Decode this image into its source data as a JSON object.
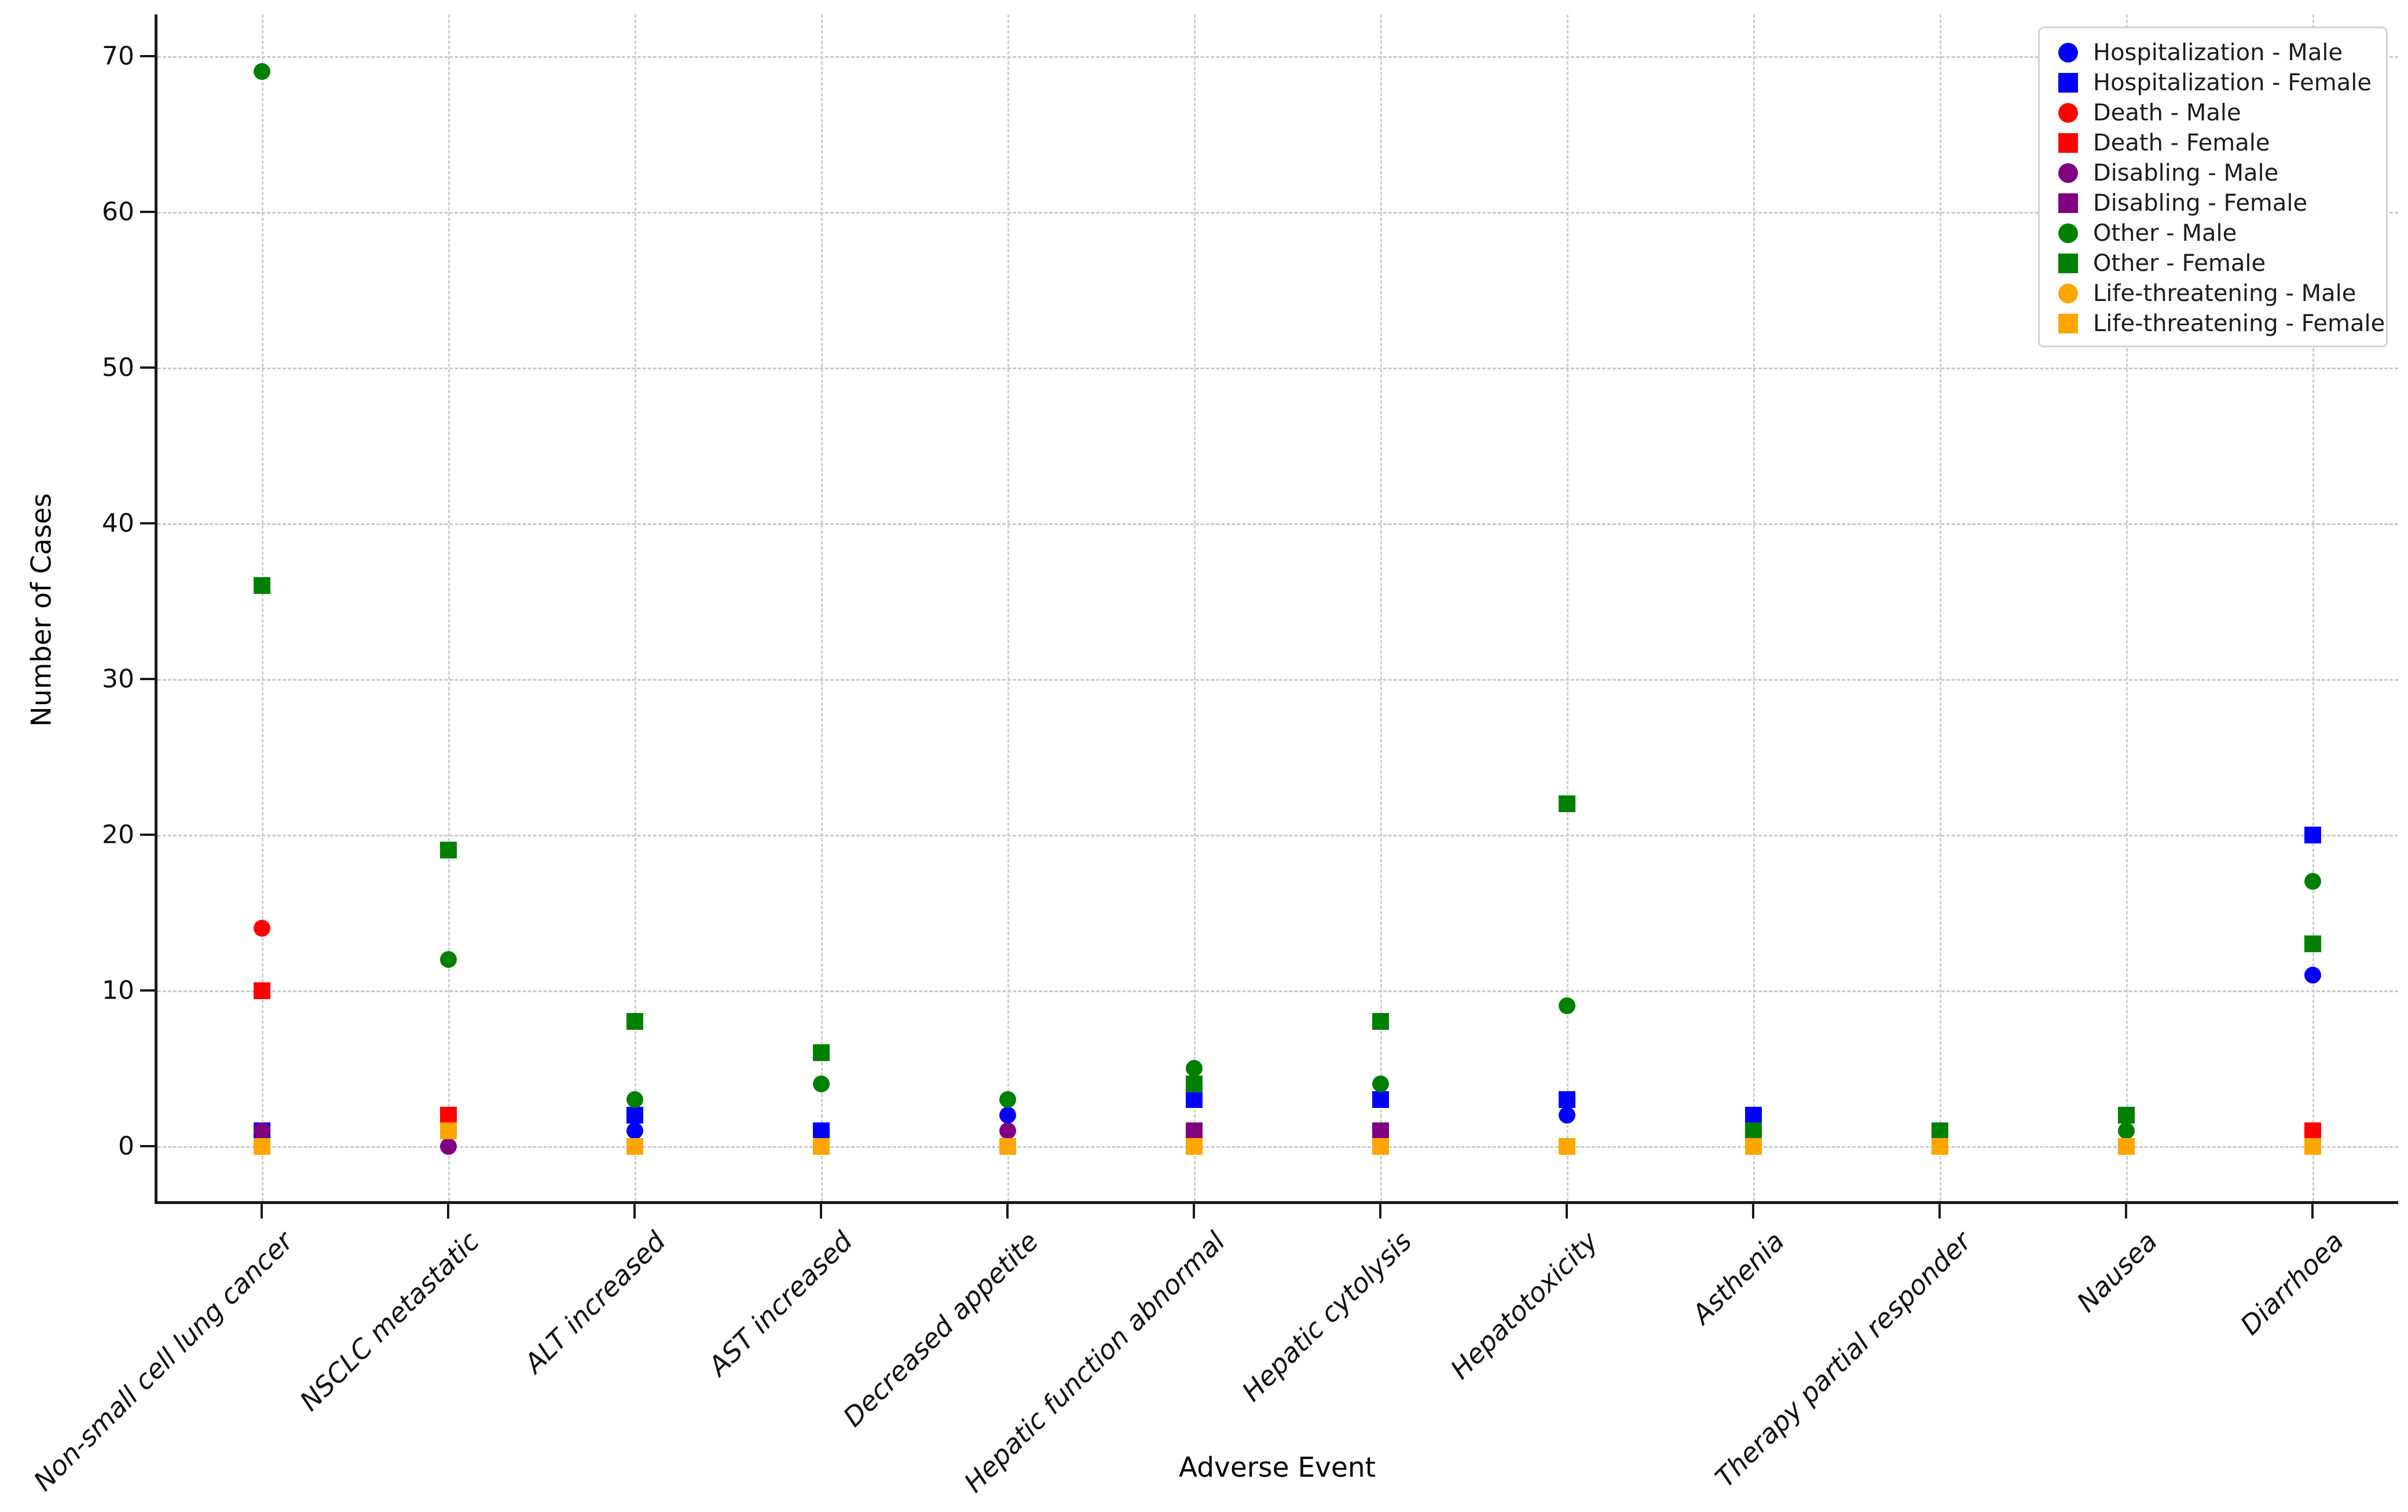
{
  "figure": {
    "y_axis": {
      "label": "Number of Cases",
      "ticks": [
        0,
        10,
        20,
        30,
        40,
        50,
        60,
        70
      ]
    },
    "x_axis": {
      "label": "Adverse Event"
    },
    "legend": [
      {
        "label": "Hospitalization - Male",
        "color": "#0000ff",
        "shape": "circle"
      },
      {
        "label": "Hospitalization - Female",
        "color": "#0000ff",
        "shape": "square"
      },
      {
        "label": "Death - Male",
        "color": "#ff0000",
        "shape": "circle"
      },
      {
        "label": "Death - Female",
        "color": "#ff0000",
        "shape": "square"
      },
      {
        "label": "Disabling - Male",
        "color": "#800080",
        "shape": "circle"
      },
      {
        "label": "Disabling - Female",
        "color": "#800080",
        "shape": "square"
      },
      {
        "label": "Other - Male",
        "color": "#008000",
        "shape": "circle"
      },
      {
        "label": "Other - Female",
        "color": "#008000",
        "shape": "square"
      },
      {
        "label": "Life-threatening - Male",
        "color": "#ffa500",
        "shape": "circle"
      },
      {
        "label": "Life-threatening - Female",
        "color": "#ffa500",
        "shape": "square"
      }
    ],
    "chart_data": {
      "type": "scatter",
      "title": "",
      "xlabel": "Adverse Event",
      "ylabel": "Number of Cases",
      "ylim": [
        -2.5,
        72.5
      ],
      "grid": true,
      "legend_position": "upper right",
      "categories": [
        "Non-small cell lung cancer",
        "NSCLC metastatic",
        "ALT increased",
        "AST increased",
        "Decreased appetite",
        "Hepatic function abnormal",
        "Hepatic cytolysis",
        "Hepatotoxicity",
        "Asthenia",
        "Therapy partial responder",
        "Nausea",
        "Diarrhoea"
      ],
      "series": [
        {
          "name": "Hospitalization - Male",
          "color": "#0000ff",
          "marker": "circle",
          "values": [
            null,
            null,
            1,
            null,
            2,
            null,
            null,
            2,
            null,
            null,
            null,
            11
          ]
        },
        {
          "name": "Hospitalization - Female",
          "color": "#0000ff",
          "marker": "square",
          "values": [
            1,
            null,
            2,
            1,
            null,
            3,
            3,
            3,
            2,
            null,
            null,
            20
          ]
        },
        {
          "name": "Death - Male",
          "color": "#ff0000",
          "marker": "circle",
          "values": [
            14,
            null,
            null,
            null,
            null,
            null,
            null,
            null,
            null,
            null,
            null,
            null
          ]
        },
        {
          "name": "Death - Female",
          "color": "#ff0000",
          "marker": "square",
          "values": [
            10,
            2,
            null,
            null,
            null,
            null,
            null,
            null,
            null,
            null,
            null,
            1
          ]
        },
        {
          "name": "Disabling - Male",
          "color": "#800080",
          "marker": "circle",
          "values": [
            1,
            0,
            null,
            null,
            1,
            null,
            null,
            null,
            null,
            null,
            null,
            null
          ]
        },
        {
          "name": "Disabling - Female",
          "color": "#800080",
          "marker": "square",
          "values": [
            null,
            null,
            null,
            null,
            null,
            1,
            1,
            null,
            null,
            null,
            null,
            null
          ]
        },
        {
          "name": "Other - Male",
          "color": "#008000",
          "marker": "circle",
          "values": [
            69,
            12,
            3,
            4,
            3,
            5,
            4,
            9,
            null,
            null,
            1,
            17
          ]
        },
        {
          "name": "Other - Female",
          "color": "#008000",
          "marker": "square",
          "values": [
            36,
            19,
            8,
            6,
            null,
            4,
            8,
            22,
            1,
            1,
            2,
            13
          ]
        },
        {
          "name": "Life-threatening - Male",
          "color": "#ffa500",
          "marker": "circle",
          "values": [
            null,
            null,
            null,
            null,
            null,
            null,
            null,
            null,
            null,
            null,
            null,
            null
          ]
        },
        {
          "name": "Life-threatening - Female",
          "color": "#ffa500",
          "marker": "square",
          "values": [
            0,
            1,
            0,
            0,
            0,
            0,
            0,
            0,
            0,
            0,
            0,
            0
          ]
        }
      ]
    }
  }
}
